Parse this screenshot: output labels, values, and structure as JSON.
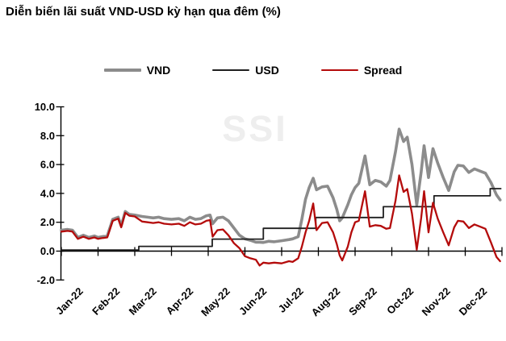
{
  "chart_data": {
    "type": "line",
    "title": "Diễn biến lãi suất VND-USD kỳ hạn qua đêm (%)",
    "watermark": "SSI",
    "legend_position": "top-center",
    "grid": false,
    "x_tick_labels": [
      "Jan-22",
      "Feb-22",
      "Mar-22",
      "Apr-22",
      "May-22",
      "Jun-22",
      "Jul-22",
      "Aug-22",
      "Sep-22",
      "Oct-22",
      "Nov-22",
      "Dec-22"
    ],
    "x_unit": "months since start of Jan-2022 (0 = Jan-22, 11.95 = end Dec-22)",
    "y_ticks": [
      10.0,
      8.0,
      6.0,
      4.0,
      2.0,
      0.0,
      -2.0
    ],
    "ylim": [
      -2.0,
      10.0
    ],
    "xlim": [
      0,
      12
    ],
    "axis_color": "#000000",
    "series": [
      {
        "name": "VND",
        "color": "#8c8c8c",
        "width": 3.6,
        "x": [
          0,
          0.17,
          0.3,
          0.45,
          0.6,
          0.75,
          0.9,
          1.0,
          1.1,
          1.25,
          1.4,
          1.55,
          1.63,
          1.74,
          1.85,
          2.0,
          2.2,
          2.35,
          2.5,
          2.65,
          2.8,
          3.0,
          3.2,
          3.35,
          3.5,
          3.65,
          3.8,
          3.95,
          4.05,
          4.12,
          4.25,
          4.4,
          4.55,
          4.7,
          4.85,
          5.0,
          5.15,
          5.3,
          5.4,
          5.5,
          5.65,
          5.8,
          6.0,
          6.2,
          6.3,
          6.45,
          6.55,
          6.65,
          6.75,
          6.86,
          6.95,
          7.1,
          7.25,
          7.4,
          7.5,
          7.58,
          7.65,
          7.8,
          7.9,
          8.0,
          8.1,
          8.27,
          8.4,
          8.55,
          8.7,
          8.85,
          8.95,
          9.1,
          9.2,
          9.32,
          9.42,
          9.55,
          9.68,
          9.8,
          9.88,
          10.0,
          10.12,
          10.25,
          10.4,
          10.55,
          10.7,
          10.8,
          10.95,
          11.1,
          11.25,
          11.4,
          11.55,
          11.7,
          11.85,
          11.95
        ],
        "values": [
          1.45,
          1.5,
          1.45,
          0.95,
          1.1,
          0.95,
          1.05,
          0.95,
          1.0,
          1.05,
          2.2,
          2.35,
          1.75,
          2.75,
          2.55,
          2.5,
          2.4,
          2.35,
          2.3,
          2.35,
          2.25,
          2.2,
          2.25,
          2.1,
          2.35,
          2.2,
          2.25,
          2.45,
          2.5,
          1.9,
          2.3,
          2.35,
          2.1,
          1.6,
          1.1,
          0.85,
          0.75,
          0.62,
          0.62,
          0.6,
          0.68,
          0.65,
          0.72,
          0.8,
          0.85,
          1.0,
          2.2,
          3.6,
          4.4,
          5.05,
          4.25,
          4.45,
          4.5,
          3.7,
          2.9,
          2.1,
          2.3,
          3.2,
          3.9,
          4.4,
          4.7,
          6.6,
          4.6,
          4.9,
          4.8,
          4.5,
          4.9,
          6.9,
          8.45,
          7.6,
          7.9,
          6.0,
          3.2,
          5.5,
          7.3,
          5.1,
          7.1,
          6.1,
          5.1,
          4.2,
          5.5,
          5.95,
          5.9,
          5.45,
          5.7,
          5.55,
          5.4,
          4.75,
          3.9,
          3.55
        ]
      },
      {
        "name": "USD",
        "color": "#1f1f1f",
        "width": 1.8,
        "x": [
          0,
          2.11,
          2.11,
          4.11,
          4.11,
          5.5,
          5.5,
          6.93,
          6.93,
          8.77,
          8.77,
          10.15,
          10.15,
          11.68,
          11.68,
          11.97
        ],
        "values": [
          0.08,
          0.08,
          0.33,
          0.33,
          0.83,
          0.83,
          1.58,
          1.58,
          2.33,
          2.33,
          3.08,
          3.08,
          3.83,
          3.83,
          4.33,
          4.33
        ]
      },
      {
        "name": "Spread",
        "color": "#b40b0b",
        "width": 2.3,
        "x": [
          0,
          0.17,
          0.3,
          0.45,
          0.6,
          0.75,
          0.9,
          1.0,
          1.1,
          1.25,
          1.4,
          1.55,
          1.63,
          1.74,
          1.85,
          2.0,
          2.2,
          2.35,
          2.5,
          2.65,
          2.8,
          3.0,
          3.2,
          3.35,
          3.5,
          3.65,
          3.8,
          3.95,
          4.05,
          4.12,
          4.25,
          4.4,
          4.55,
          4.7,
          4.85,
          5.0,
          5.15,
          5.3,
          5.4,
          5.5,
          5.65,
          5.8,
          6.0,
          6.2,
          6.3,
          6.45,
          6.55,
          6.65,
          6.75,
          6.86,
          6.95,
          7.1,
          7.25,
          7.4,
          7.5,
          7.58,
          7.65,
          7.8,
          7.9,
          8.0,
          8.1,
          8.27,
          8.4,
          8.55,
          8.7,
          8.85,
          8.95,
          9.1,
          9.2,
          9.32,
          9.42,
          9.55,
          9.68,
          9.8,
          9.88,
          10.0,
          10.12,
          10.25,
          10.4,
          10.55,
          10.7,
          10.8,
          10.95,
          11.1,
          11.25,
          11.4,
          11.55,
          11.7,
          11.85,
          11.95
        ],
        "values": [
          1.35,
          1.4,
          1.35,
          0.85,
          1.0,
          0.85,
          0.95,
          0.85,
          0.9,
          0.95,
          2.1,
          2.25,
          1.65,
          2.65,
          2.45,
          2.4,
          2.05,
          2.0,
          1.95,
          2.0,
          1.9,
          1.85,
          1.9,
          1.75,
          2.0,
          1.85,
          1.9,
          2.1,
          2.15,
          1.0,
          1.45,
          1.5,
          1.1,
          0.55,
          0.2,
          -0.35,
          -0.5,
          -0.6,
          -1.0,
          -0.8,
          -0.85,
          -0.8,
          -0.85,
          -0.7,
          -0.75,
          -0.5,
          0.3,
          1.3,
          2.1,
          3.3,
          1.45,
          1.95,
          2.0,
          1.3,
          0.5,
          -0.3,
          -0.65,
          0.3,
          1.3,
          2.0,
          2.1,
          4.15,
          1.7,
          1.8,
          1.75,
          1.55,
          1.6,
          3.5,
          5.25,
          4.1,
          4.3,
          2.6,
          0.1,
          2.3,
          4.15,
          1.3,
          3.35,
          2.25,
          1.3,
          0.4,
          1.65,
          2.1,
          2.05,
          1.6,
          1.85,
          1.7,
          1.55,
          0.6,
          -0.4,
          -0.7
        ]
      }
    ]
  }
}
